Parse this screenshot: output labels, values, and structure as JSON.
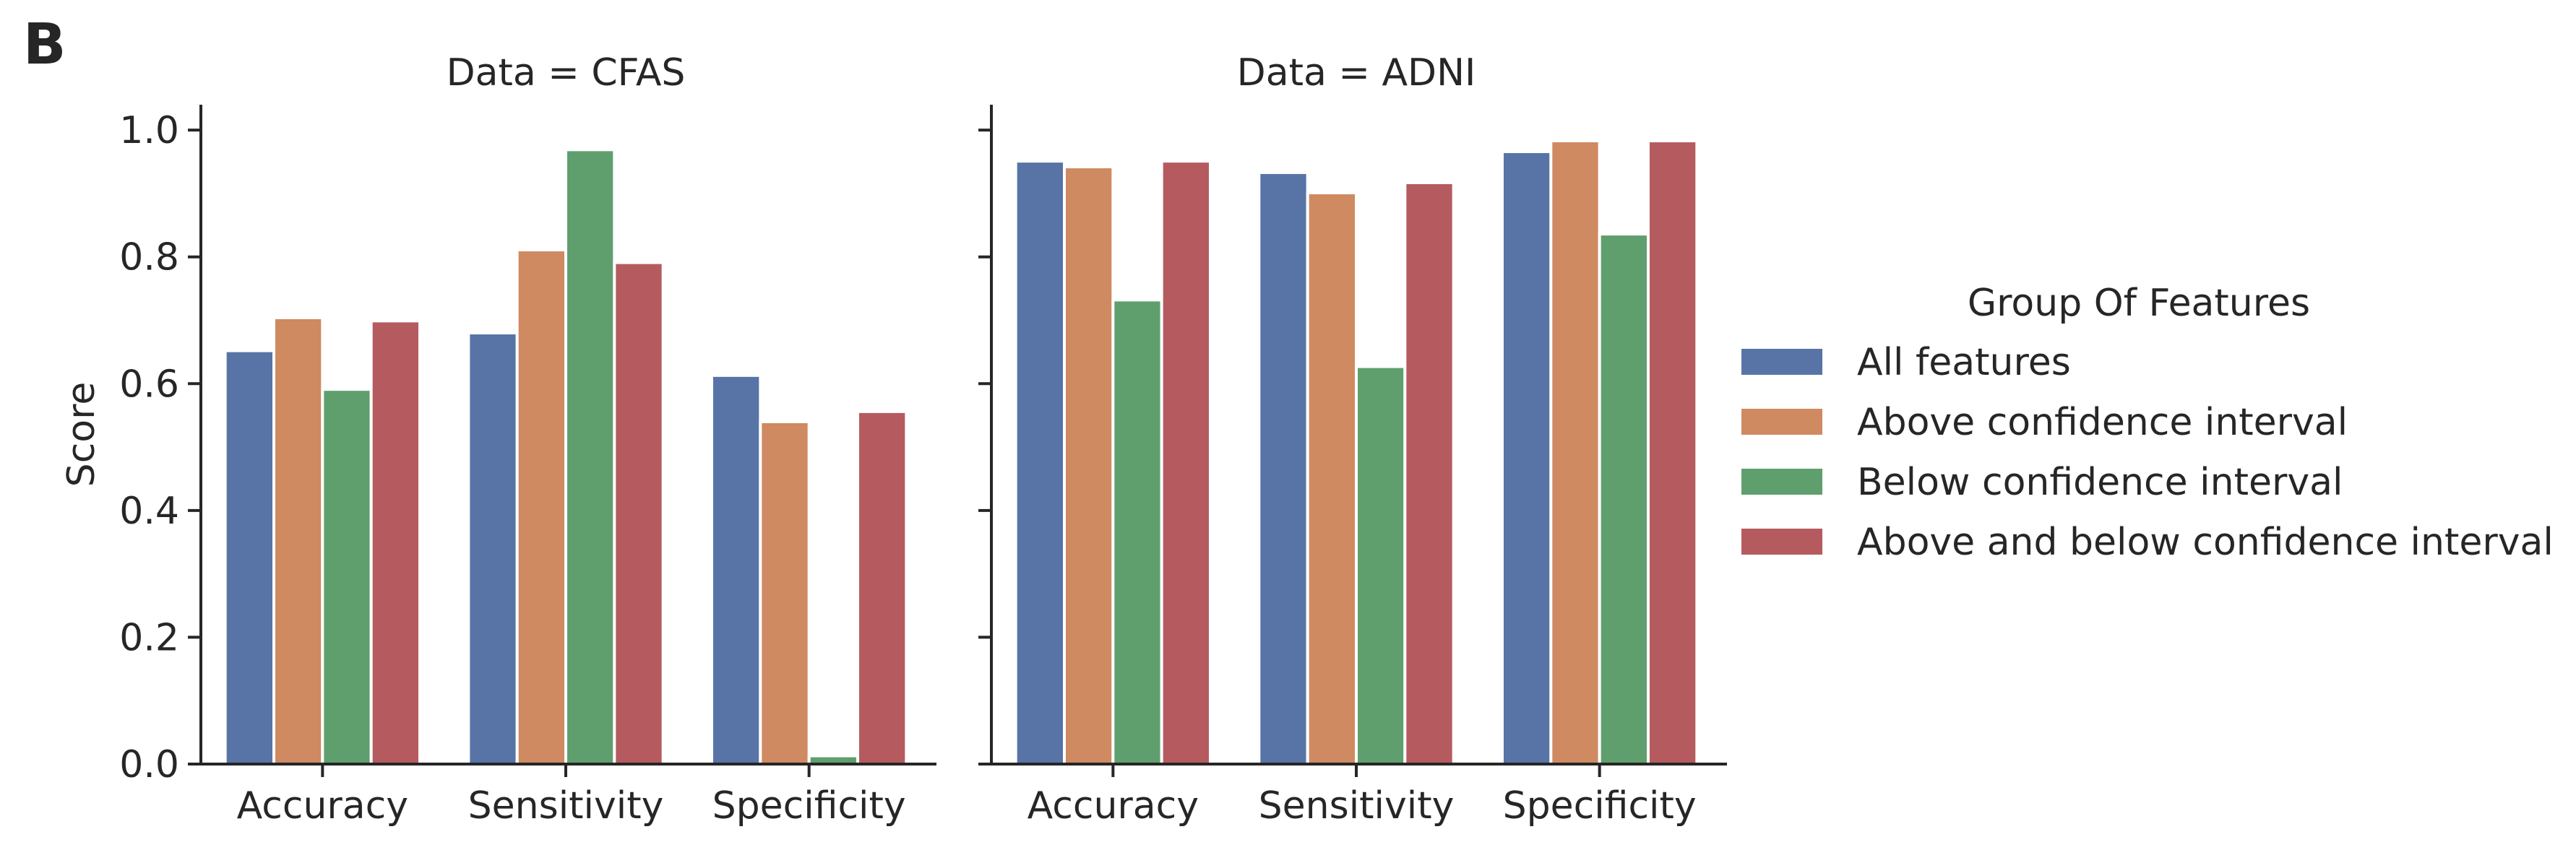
{
  "panel_label": "B",
  "chart_data": [
    {
      "type": "bar",
      "title": "Data = CFAS",
      "ylabel": "Score",
      "xlabel": "",
      "categories": [
        "Accuracy",
        "Sensitivity",
        "Specificity"
      ],
      "ylim": [
        0,
        1.04
      ],
      "yticks": [
        0.0,
        0.2,
        0.4,
        0.6,
        0.8,
        1.0
      ],
      "ytick_labels": [
        "0.0",
        "0.2",
        "0.4",
        "0.6",
        "0.8",
        "1.0"
      ],
      "grid": false,
      "series": [
        {
          "name": "All features",
          "values": [
            0.652,
            0.68,
            0.613
          ]
        },
        {
          "name": "Above confidence interval",
          "values": [
            0.704,
            0.811,
            0.54
          ]
        },
        {
          "name": "Below confidence interval",
          "values": [
            0.591,
            0.969,
            0.013
          ]
        },
        {
          "name": "Above and below confidence interval",
          "values": [
            0.699,
            0.791,
            0.556
          ]
        }
      ]
    },
    {
      "type": "bar",
      "title": "Data = ADNI",
      "ylabel": "",
      "xlabel": "",
      "categories": [
        "Accuracy",
        "Sensitivity",
        "Specificity"
      ],
      "ylim": [
        0,
        1.04
      ],
      "yticks": [
        0.0,
        0.2,
        0.4,
        0.6,
        0.8,
        1.0
      ],
      "ytick_labels": [],
      "grid": false,
      "series": [
        {
          "name": "All features",
          "values": [
            0.951,
            0.933,
            0.966
          ]
        },
        {
          "name": "Above confidence interval",
          "values": [
            0.942,
            0.901,
            0.983
          ]
        },
        {
          "name": "Below confidence interval",
          "values": [
            0.732,
            0.627,
            0.836
          ]
        },
        {
          "name": "Above and below confidence interval",
          "values": [
            0.951,
            0.917,
            0.983
          ]
        }
      ]
    }
  ],
  "legend": {
    "title": "Group Of Features",
    "placement": "right",
    "entries": [
      "All features",
      "Above confidence interval",
      "Below confidence interval",
      "Above and below confidence interval"
    ]
  },
  "colors": [
    "#5874a6",
    "#cf8a61",
    "#5f9f6e",
    "#b55b60"
  ]
}
